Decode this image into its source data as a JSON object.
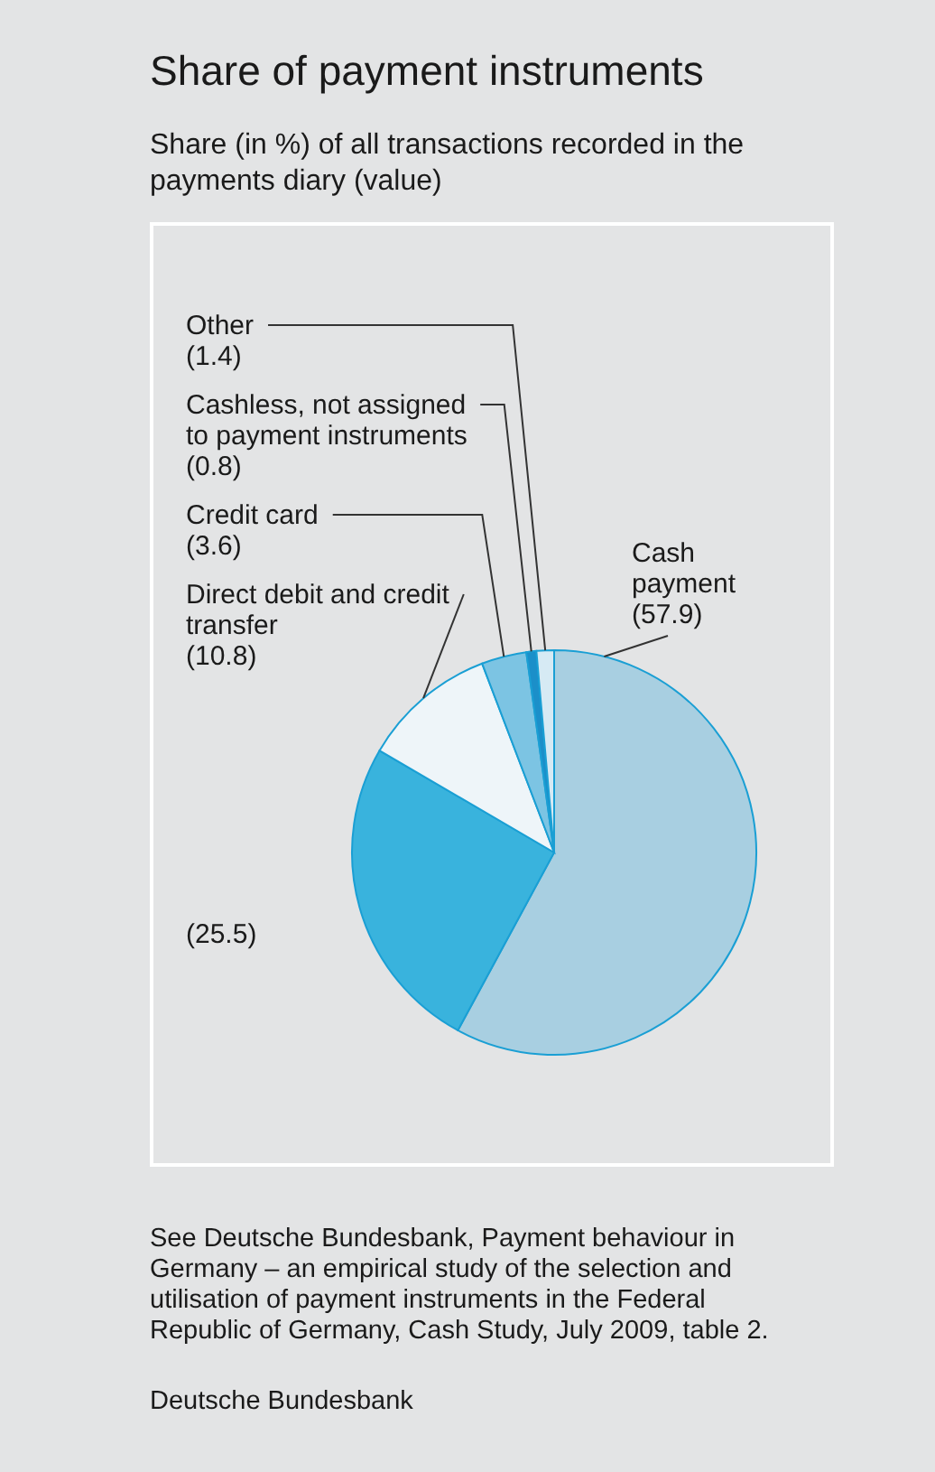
{
  "chart_data": {
    "type": "pie",
    "title": "Share of payment instruments",
    "subtitle": "Share (in %) of all transactions recorded in the payments diary (value)",
    "categories": [
      "Cash payment",
      null,
      "Direct debit and credit transfer",
      "Credit card",
      "Cashless, not assigned to payment instruments",
      "Other"
    ],
    "values": [
      57.9,
      25.5,
      10.8,
      3.6,
      0.8,
      1.4
    ],
    "colors": [
      "#a8cfe1",
      "#39b3dd",
      "#eef5f9",
      "#7cc4e3",
      "#1b8fc9",
      "#d6eaf4"
    ],
    "value_labels": [
      "(57.9)",
      "(25.5)",
      "(10.8)",
      "(3.6)",
      "(0.8)",
      "(1.4)"
    ],
    "annotations": [
      "See Deutsche Bundesbank, Payment behaviour in Germany – an empirical study of the selection and utilisation of payment instruments in the Federal Republic of Germany, Cash Study, July 2009, table 2.",
      "Deutsche Bundesbank"
    ]
  }
}
